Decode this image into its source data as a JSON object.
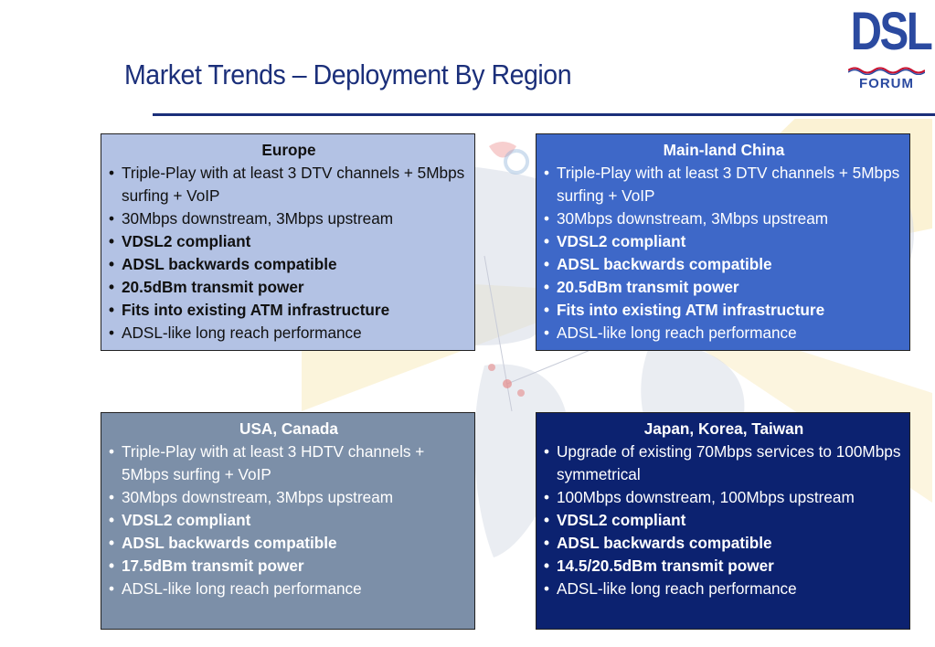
{
  "slide": {
    "title": "Market Trends – Deployment By Region"
  },
  "logo": {
    "main": "DSL",
    "sub": "FORUM"
  },
  "regions": {
    "europe": {
      "heading": "Europe",
      "items": [
        "Triple-Play with at least 3 DTV channels + 5Mbps surfing + VoIP",
        "30Mbps downstream, 3Mbps upstream",
        "VDSL2 compliant",
        "ADSL backwards compatible",
        "20.5dBm transmit power",
        "Fits into existing ATM infrastructure",
        "ADSL-like long reach performance"
      ]
    },
    "china": {
      "heading": "Main-land China",
      "items": [
        "Triple-Play with at least 3 DTV channels + 5Mbps surfing + VoIP",
        "30Mbps downstream, 3Mbps upstream",
        "VDSL2 compliant",
        "ADSL backwards compatible",
        "20.5dBm transmit power",
        "Fits into existing ATM infrastructure",
        "ADSL-like long reach performance"
      ]
    },
    "usa": {
      "heading": "USA, Canada",
      "items": [
        "Triple-Play with at least 3 HDTV channels + 5Mbps surfing + VoIP",
        "30Mbps downstream, 3Mbps upstream",
        "VDSL2 compliant",
        "ADSL backwards compatible",
        "17.5dBm transmit power",
        "ADSL-like long reach performance"
      ]
    },
    "asia": {
      "heading": "Japan, Korea, Taiwan",
      "items": [
        "Upgrade of existing 70Mbps services to 100Mbps symmetrical",
        "100Mbps downstream, 100Mbps upstream",
        "VDSL2 compliant",
        "ADSL backwards compatible",
        "14.5/20.5dBm transmit power",
        "ADSL-like long reach performance"
      ]
    }
  },
  "colors": {
    "title": "#1b2f7a",
    "europe_box": "#b3c2e4",
    "china_box": "#3e68c8",
    "usa_box": "#7c8fa8",
    "asia_box": "#0c2270"
  },
  "icons": [
    "world-map-background",
    "dsl-forum-logo"
  ]
}
